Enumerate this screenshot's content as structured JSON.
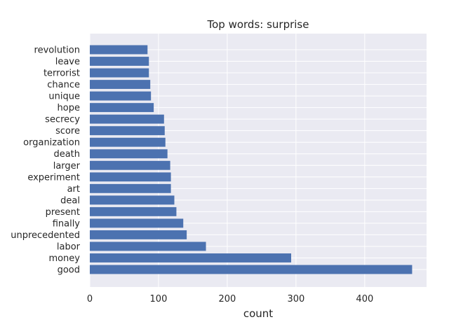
{
  "chart_data": {
    "type": "bar",
    "orientation": "horizontal",
    "title": "Top words: surprise",
    "xlabel": "count",
    "ylabel": "",
    "xlim": [
      0,
      490
    ],
    "xticks": [
      0,
      100,
      200,
      300,
      400
    ],
    "grid": true,
    "categories": [
      "good",
      "money",
      "labor",
      "unprecedented",
      "finally",
      "present",
      "deal",
      "art",
      "experiment",
      "larger",
      "death",
      "organization",
      "score",
      "secrecy",
      "hope",
      "unique",
      "chance",
      "terrorist",
      "leave",
      "revolution"
    ],
    "values": [
      469,
      293,
      169,
      141,
      136,
      126,
      123,
      118,
      118,
      117,
      113,
      110,
      109,
      108,
      93,
      89,
      88,
      86,
      86,
      84
    ],
    "colors": {
      "bar": "#4c72b0",
      "plot_background": "#eaeaf2",
      "grid": "#ffffff",
      "text": "#262626"
    }
  }
}
